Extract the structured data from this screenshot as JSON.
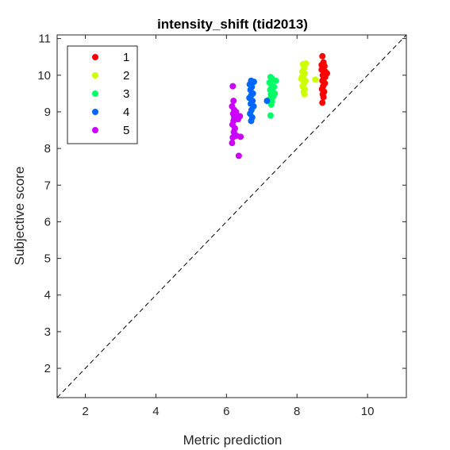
{
  "chart_data": {
    "type": "scatter",
    "title": "intensity_shift (tid2013)",
    "xlabel": "Metric prediction",
    "ylabel": "Subjective score",
    "xlim": [
      1.2,
      11.1
    ],
    "ylim": [
      1.2,
      11.1
    ],
    "xticks": [
      "2",
      "4",
      "6",
      "8",
      "10"
    ],
    "yticks": [
      "2",
      "3",
      "4",
      "5",
      "6",
      "7",
      "8",
      "9",
      "10",
      "11"
    ],
    "grid": false,
    "legend_position": "top-left",
    "reference_line": "y = x (dashed)",
    "series": [
      {
        "name": "1",
        "color": "#ff0000",
        "points": [
          [
            8.72,
            10.52
          ],
          [
            8.75,
            10.35
          ],
          [
            8.78,
            10.25
          ],
          [
            8.7,
            10.15
          ],
          [
            8.8,
            10.1
          ],
          [
            8.85,
            10.05
          ],
          [
            8.73,
            10.0
          ],
          [
            8.76,
            9.92
          ],
          [
            8.72,
            9.85
          ],
          [
            8.79,
            9.78
          ],
          [
            8.74,
            9.7
          ],
          [
            8.71,
            9.62
          ],
          [
            8.77,
            9.55
          ],
          [
            8.73,
            9.48
          ],
          [
            8.75,
            9.4
          ],
          [
            8.72,
            9.25
          ],
          [
            8.8,
            9.95
          ],
          [
            8.7,
            10.28
          ]
        ]
      },
      {
        "name": "2",
        "color": "#ccff00",
        "points": [
          [
            8.17,
            10.3
          ],
          [
            8.25,
            10.32
          ],
          [
            8.2,
            10.2
          ],
          [
            8.15,
            10.1
          ],
          [
            8.22,
            10.05
          ],
          [
            8.18,
            9.98
          ],
          [
            8.12,
            9.9
          ],
          [
            8.24,
            9.85
          ],
          [
            8.52,
            9.88
          ],
          [
            8.2,
            9.78
          ],
          [
            8.16,
            9.7
          ],
          [
            8.22,
            9.62
          ],
          [
            8.19,
            9.55
          ],
          [
            8.21,
            9.48
          ],
          [
            8.14,
            9.95
          ]
        ]
      },
      {
        "name": "3",
        "color": "#00ff66",
        "points": [
          [
            7.25,
            9.95
          ],
          [
            7.3,
            9.9
          ],
          [
            7.4,
            9.85
          ],
          [
            7.22,
            9.8
          ],
          [
            7.28,
            9.72
          ],
          [
            7.35,
            9.68
          ],
          [
            7.24,
            9.6
          ],
          [
            7.3,
            9.55
          ],
          [
            7.26,
            9.48
          ],
          [
            7.33,
            9.42
          ],
          [
            7.23,
            9.35
          ],
          [
            7.29,
            9.28
          ],
          [
            7.27,
            9.2
          ],
          [
            7.25,
            8.9
          ],
          [
            7.37,
            9.5
          ]
        ]
      },
      {
        "name": "4",
        "color": "#0066ff",
        "points": [
          [
            6.7,
            9.85
          ],
          [
            6.78,
            9.82
          ],
          [
            6.66,
            9.75
          ],
          [
            6.72,
            9.68
          ],
          [
            6.68,
            9.6
          ],
          [
            6.75,
            9.5
          ],
          [
            6.7,
            9.45
          ],
          [
            6.65,
            9.38
          ],
          [
            6.74,
            9.3
          ],
          [
            6.69,
            9.22
          ],
          [
            6.77,
            9.15
          ],
          [
            6.71,
            9.05
          ],
          [
            6.67,
            8.95
          ],
          [
            6.73,
            8.85
          ],
          [
            6.7,
            8.75
          ],
          [
            7.15,
            9.3
          ]
        ]
      },
      {
        "name": "5",
        "color": "#cc00ff",
        "points": [
          [
            6.18,
            9.7
          ],
          [
            6.2,
            9.3
          ],
          [
            6.16,
            9.15
          ],
          [
            6.22,
            9.05
          ],
          [
            6.19,
            8.95
          ],
          [
            6.3,
            8.9
          ],
          [
            6.38,
            8.88
          ],
          [
            6.25,
            8.82
          ],
          [
            6.33,
            8.8
          ],
          [
            6.2,
            8.75
          ],
          [
            6.17,
            8.65
          ],
          [
            6.24,
            8.55
          ],
          [
            6.21,
            8.45
          ],
          [
            6.18,
            8.3
          ],
          [
            6.28,
            8.35
          ],
          [
            6.4,
            8.32
          ],
          [
            6.16,
            8.15
          ],
          [
            6.35,
            7.8
          ],
          [
            6.22,
            8.85
          ],
          [
            6.27,
            9.0
          ]
        ]
      }
    ]
  }
}
